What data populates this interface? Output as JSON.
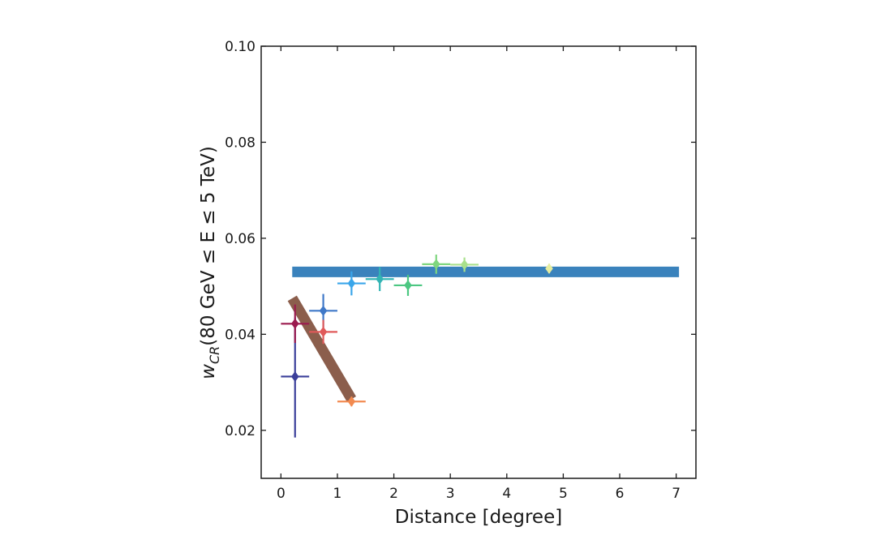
{
  "chart_data": {
    "type": "scatter",
    "title": "",
    "xlabel": "Distance [degree]",
    "ylabel_prefix": "w",
    "ylabel_subscript": "CR",
    "ylabel_rest": "(80 GeV ≤ E ≤ 5 TeV)",
    "xlim": [
      -0.35,
      7.35
    ],
    "ylim": [
      0.01,
      0.1
    ],
    "xticks": [
      0,
      1,
      2,
      3,
      4,
      5,
      6,
      7
    ],
    "xtick_labels": [
      "0",
      "1",
      "2",
      "3",
      "4",
      "5",
      "6",
      "7"
    ],
    "yticks": [
      0.02,
      0.04,
      0.06,
      0.08,
      0.1
    ],
    "ytick_labels": [
      "0.02",
      "0.04",
      "0.06",
      "0.08",
      "0.10"
    ],
    "grid": false,
    "legend": "none",
    "points": [
      {
        "x": 0.25,
        "y": 0.0312,
        "xerr": 0.25,
        "yerr_low": 0.0127,
        "yerr_high": 0.0123,
        "color": "#3b3f9a"
      },
      {
        "x": 0.25,
        "y": 0.0422,
        "xerr": 0.25,
        "yerr_low": 0.004,
        "yerr_high": 0.004,
        "color": "#9b1b4f"
      },
      {
        "x": 0.75,
        "y": 0.0449,
        "xerr": 0.25,
        "yerr_low": 0.0035,
        "yerr_high": 0.0035,
        "color": "#3f78c8"
      },
      {
        "x": 0.75,
        "y": 0.0405,
        "xerr": 0.25,
        "yerr_low": 0.0025,
        "yerr_high": 0.0025,
        "color": "#e05a5a"
      },
      {
        "x": 1.25,
        "y": 0.026,
        "xerr": 0.25,
        "yerr_low": 0.001,
        "yerr_high": 0.001,
        "color": "#f28a50"
      },
      {
        "x": 1.25,
        "y": 0.0506,
        "xerr": 0.25,
        "yerr_low": 0.0025,
        "yerr_high": 0.0025,
        "color": "#3aa6ea"
      },
      {
        "x": 1.75,
        "y": 0.0515,
        "xerr": 0.25,
        "yerr_low": 0.0025,
        "yerr_high": 0.0025,
        "color": "#32b4b4"
      },
      {
        "x": 2.25,
        "y": 0.0502,
        "xerr": 0.25,
        "yerr_low": 0.0022,
        "yerr_high": 0.0022,
        "color": "#4cc782"
      },
      {
        "x": 2.75,
        "y": 0.0546,
        "xerr": 0.25,
        "yerr_low": 0.002,
        "yerr_high": 0.002,
        "color": "#7fd67f"
      },
      {
        "x": 3.25,
        "y": 0.0545,
        "xerr": 0.25,
        "yerr_low": 0.0015,
        "yerr_high": 0.0015,
        "color": "#a9e08c"
      },
      {
        "x": 4.75,
        "y": 0.0537,
        "xerr": 0.0,
        "yerr_low": 0.001,
        "yerr_high": 0.001,
        "color": "#e6eda0"
      }
    ],
    "bands": [
      {
        "x_start": 0.2,
        "y_start": 0.0475,
        "x_end": 1.25,
        "y_end": 0.0265,
        "color": "#8b5e4c"
      },
      {
        "x_start": 0.2,
        "y_start": 0.053,
        "x_end": 7.05,
        "y_end": 0.053,
        "color": "#3a82bc"
      }
    ]
  }
}
